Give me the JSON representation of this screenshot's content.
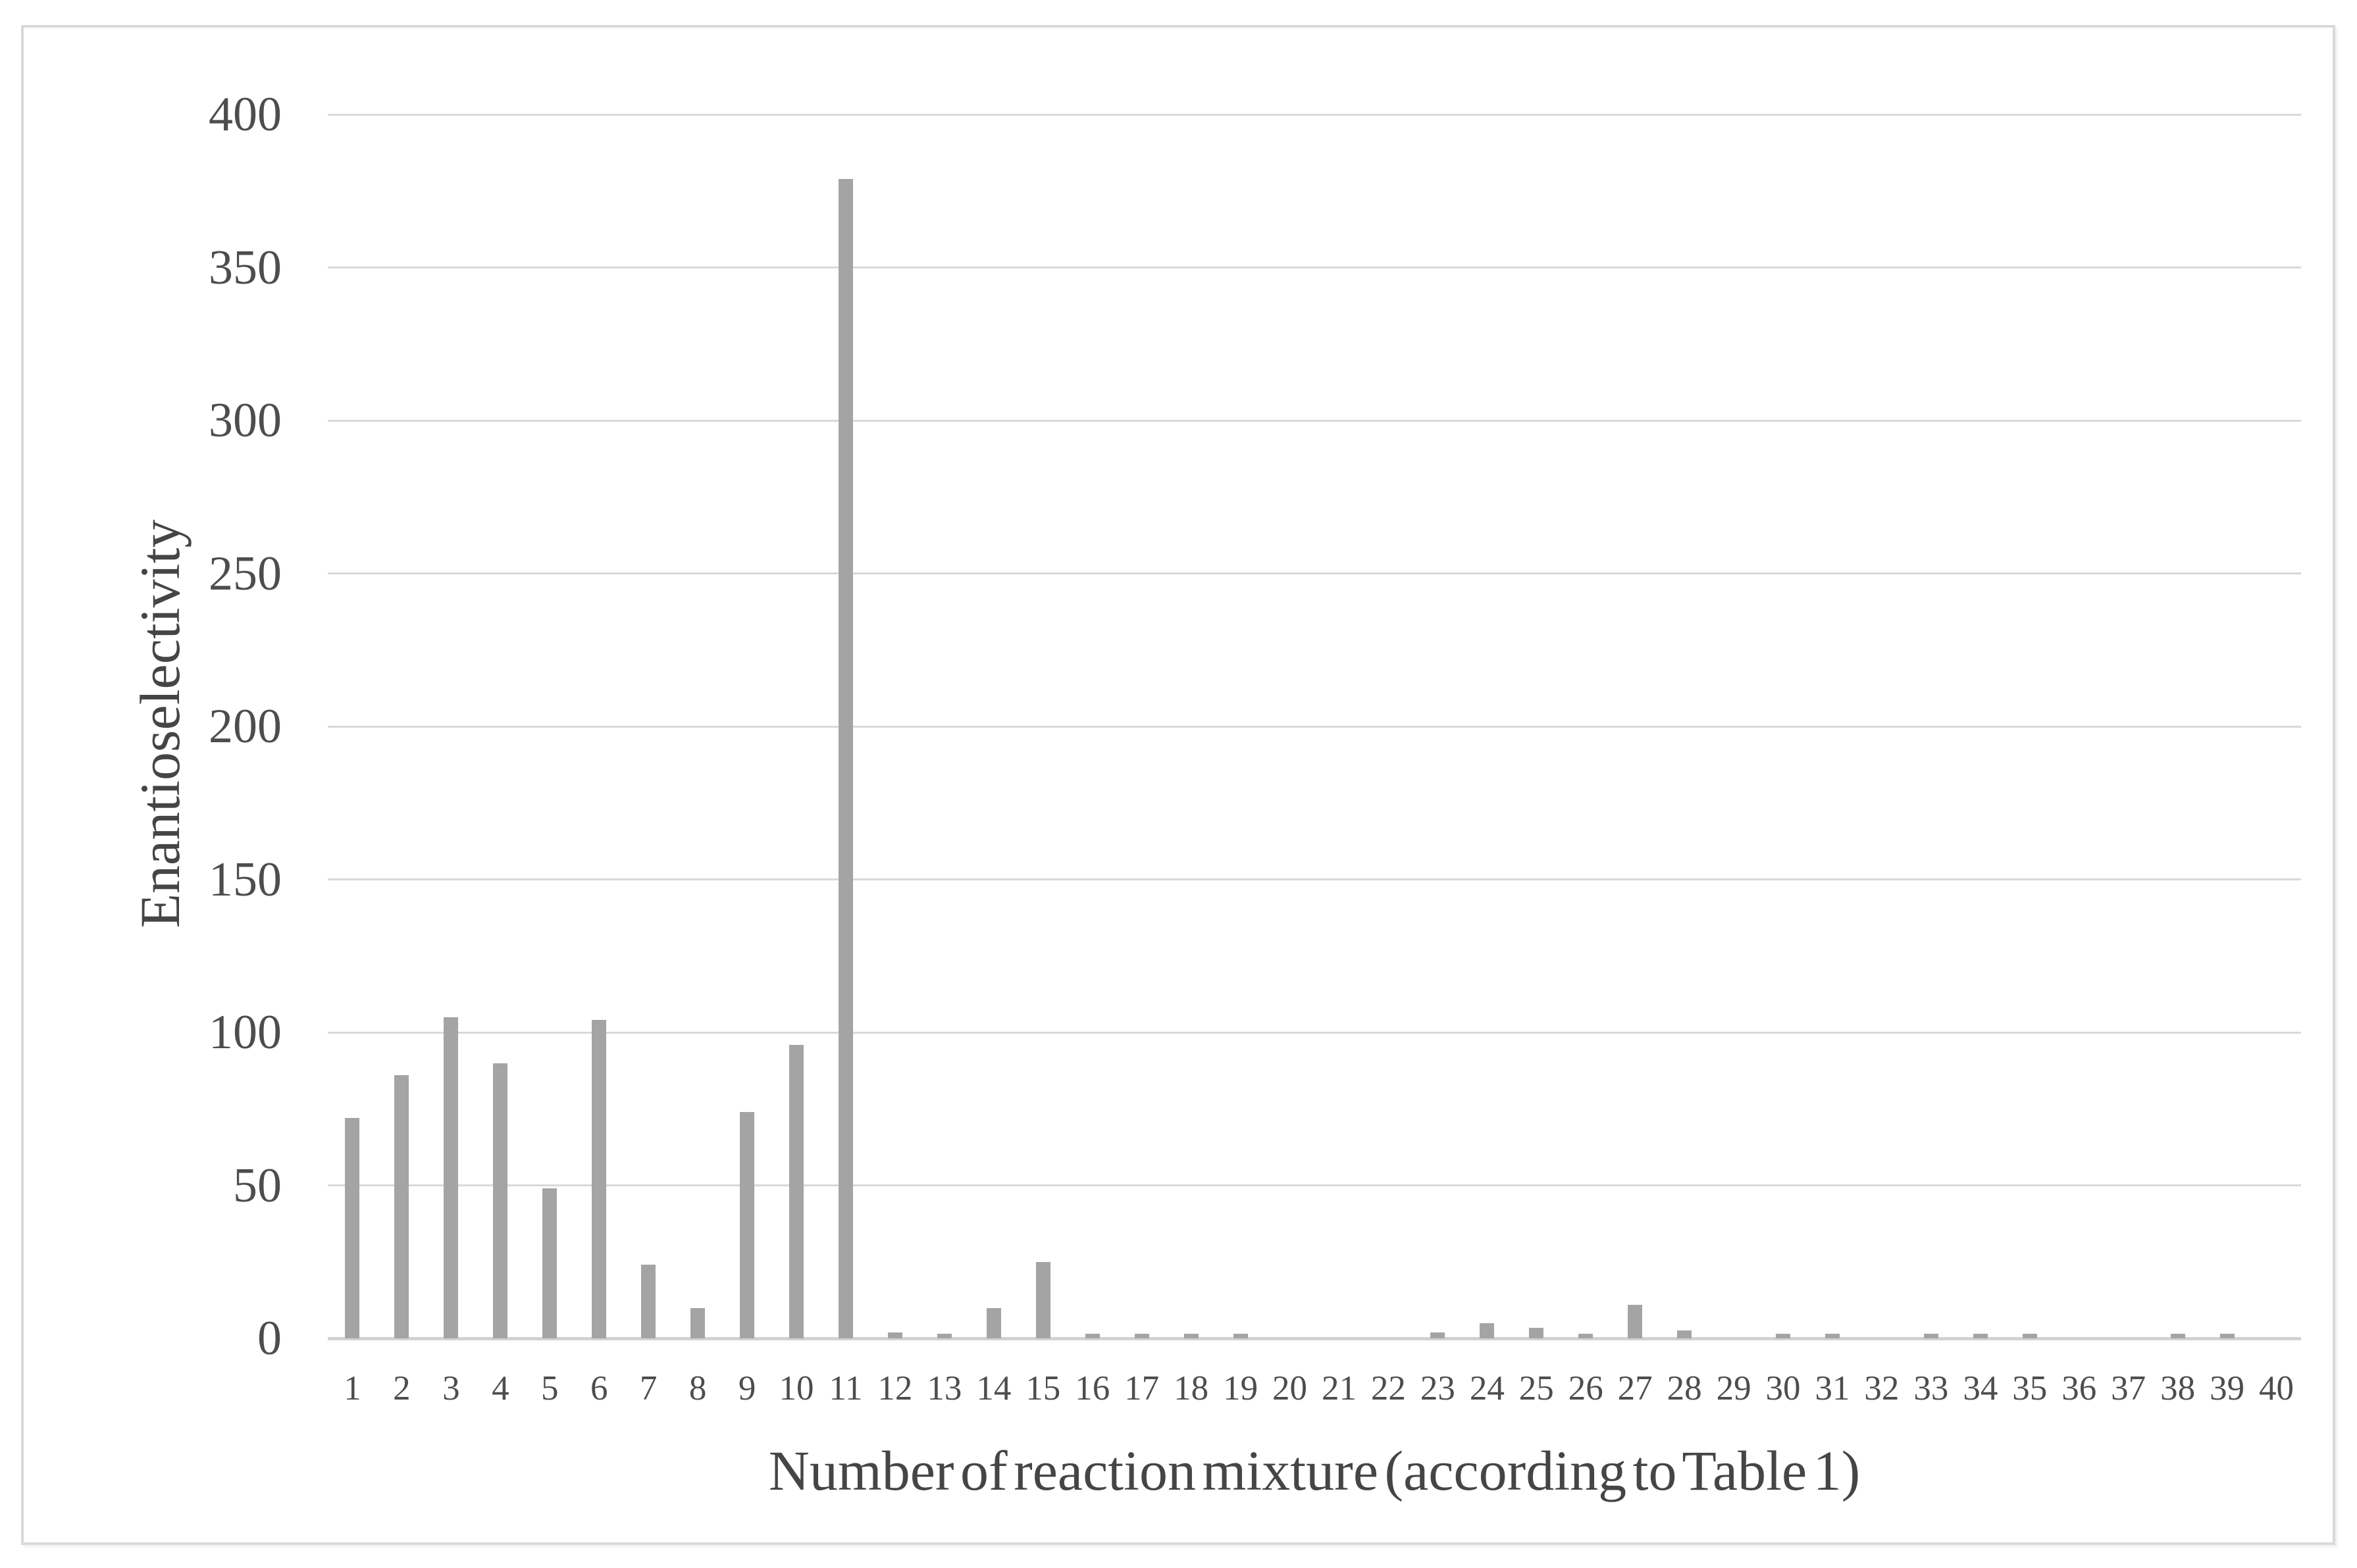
{
  "figure": {
    "description": "Bar chart of enantioselectivity per reaction mixture"
  },
  "chart_data": {
    "type": "bar",
    "title": "",
    "xlabel": "Number of reaction mixture (according to Table 1)",
    "ylabel": "Enantioselectivity",
    "categories": [
      "1",
      "2",
      "3",
      "4",
      "5",
      "6",
      "7",
      "8",
      "9",
      "10",
      "11",
      "12",
      "13",
      "14",
      "15",
      "16",
      "17",
      "18",
      "19",
      "20",
      "21",
      "22",
      "23",
      "24",
      "25",
      "26",
      "27",
      "28",
      "29",
      "30",
      "31",
      "32",
      "33",
      "34",
      "35",
      "36",
      "37",
      "38",
      "39",
      "40"
    ],
    "values": [
      72,
      86,
      105,
      90,
      49,
      104,
      24,
      10,
      74,
      96,
      379,
      2,
      1.5,
      10,
      25,
      1.5,
      1.5,
      1.5,
      1.5,
      0,
      0,
      0,
      2,
      5,
      3.5,
      1.5,
      11,
      2.5,
      0,
      1.5,
      1.5,
      0,
      1.5,
      1.5,
      1.5,
      0,
      0,
      1.5,
      1.5,
      0
    ],
    "ylim": [
      0,
      400
    ],
    "ytick_interval": 50,
    "yticks": [
      0,
      50,
      100,
      150,
      200,
      250,
      300,
      350,
      400
    ],
    "grid": true,
    "legend": "none",
    "colors": {
      "bar": "#a4a4a4",
      "gridline": "#d9d9d9",
      "axis_line": "#d2d2d2",
      "tick_label": "#4d4d4d",
      "axis_title": "#454545",
      "frame_border": "#d9d9d9",
      "background": "#ffffff"
    }
  }
}
